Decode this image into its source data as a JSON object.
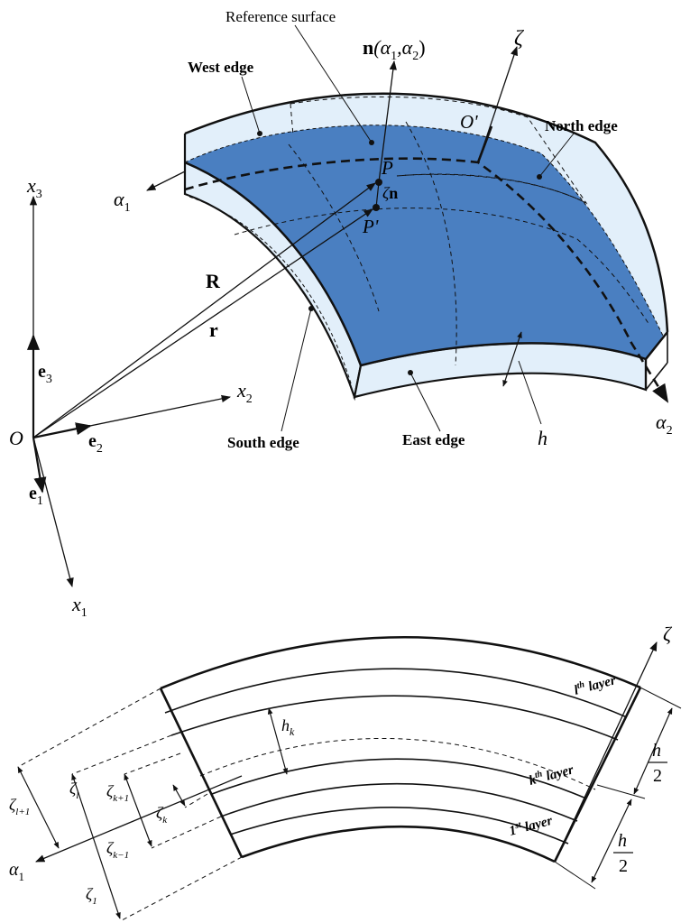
{
  "top_figure": {
    "reference_surface_label": "Reference surface",
    "normal_label": {
      "bold": "n",
      "args": "(α",
      "sub1": "1",
      "comma": ",α",
      "sub2": "2",
      "close": ")"
    },
    "zeta_axis": "ζ",
    "o_prime": "O'",
    "west_edge": "West edge",
    "north_edge": "North edge",
    "south_edge": "South edge",
    "east_edge": "East edge",
    "alpha1": {
      "sym": "α",
      "sub": "1"
    },
    "alpha2": {
      "sym": "α",
      "sub": "2"
    },
    "point_p": "P",
    "point_p_prime": "P'",
    "zeta_n": {
      "sym": "ζ",
      "bold": "n"
    },
    "R_vec": "R",
    "r_vec": "r",
    "thickness_h": "h",
    "origin": "O",
    "x1": {
      "sym": "x",
      "sub": "1"
    },
    "x2": {
      "sym": "x",
      "sub": "2"
    },
    "x3": {
      "sym": "x",
      "sub": "3"
    },
    "e1": {
      "sym": "e",
      "sub": "1"
    },
    "e2": {
      "sym": "e",
      "sub": "2"
    },
    "e3": {
      "sym": "e",
      "sub": "3"
    }
  },
  "bottom_figure": {
    "zeta_axis": "ζ",
    "alpha1": {
      "sym": "α",
      "sub": "1"
    },
    "lth_layer": {
      "base": "l",
      "sup": "th",
      "rest": " layer"
    },
    "kth_layer": {
      "base": "k",
      "sup": "th",
      "rest": " layer"
    },
    "first_layer": {
      "base": "1",
      "sup": "st",
      "rest": " layer"
    },
    "h_k": {
      "sym": "h",
      "sub": "k"
    },
    "zeta_l_plus_1": {
      "sym": "ζ",
      "sub": "l+1"
    },
    "zeta_l": {
      "sym": "ζ",
      "sub": "l"
    },
    "zeta_k_plus_1": {
      "sym": "ζ",
      "sub": "k+1"
    },
    "zeta_k": {
      "sym": "ζ",
      "sub": "k"
    },
    "zeta_k_minus_1": {
      "sym": "ζ",
      "sub": "k−1"
    },
    "zeta_1": {
      "sym": "ζ",
      "sub": "1"
    },
    "half_h_upper": {
      "num": "h",
      "den": "2"
    },
    "half_h_lower": {
      "num": "h",
      "den": "2"
    }
  },
  "colors": {
    "surface_fill": "#4a7fc1",
    "shell_fill": "#e2effa",
    "line": "#111111"
  }
}
